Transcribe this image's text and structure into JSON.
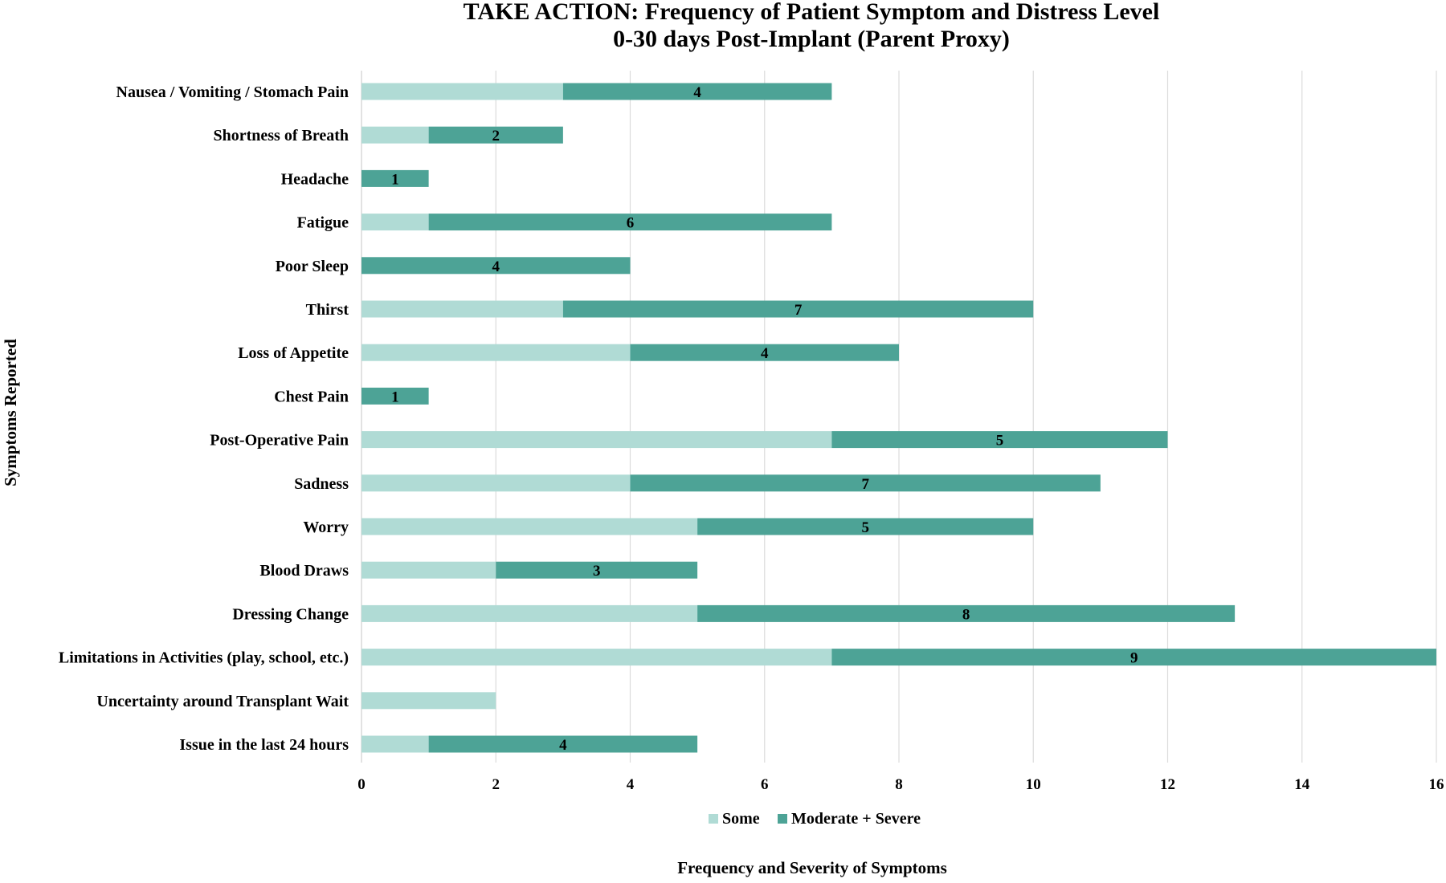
{
  "chart_data": {
    "type": "bar",
    "orientation": "horizontal",
    "stacked": true,
    "title_line1": "TAKE ACTION: Frequency of Patient Symptom and Distress Level",
    "title_line2": "0-30 days Post-Implant (Parent Proxy)",
    "xlabel": "Frequency and Severity of Symptoms",
    "ylabel": "Symptoms Reported",
    "xlim": [
      0,
      16
    ],
    "xticks": [
      0,
      2,
      4,
      6,
      8,
      10,
      12,
      14,
      16
    ],
    "grid": "vertical",
    "legend_position": "bottom",
    "categories": [
      "Nausea / Vomiting / Stomach Pain",
      "Shortness of Breath",
      "Headache",
      "Fatigue",
      "Poor Sleep",
      "Thirst",
      "Loss of Appetite",
      "Chest Pain",
      "Post-Operative Pain",
      "Sadness",
      "Worry",
      "Blood Draws",
      "Dressing Change",
      "Limitations in Activities (play, school, etc.)",
      "Uncertainty around Transplant Wait",
      "Issue in the last 24 hours"
    ],
    "series": [
      {
        "name": "Some",
        "color": "#b0dbd5",
        "values": [
          3,
          1,
          0,
          1,
          0,
          3,
          4,
          0,
          7,
          4,
          5,
          2,
          5,
          7,
          2,
          1
        ],
        "data_labels": [
          "",
          "",
          "",
          "",
          "",
          "",
          "",
          "",
          "",
          "",
          "",
          "",
          "",
          "",
          "",
          ""
        ]
      },
      {
        "name": "Moderate + Severe",
        "color": "#4da396",
        "values": [
          4,
          2,
          1,
          6,
          4,
          7,
          4,
          1,
          5,
          7,
          5,
          3,
          8,
          9,
          0,
          4
        ],
        "data_labels": [
          "4",
          "2",
          "1",
          "6",
          "4",
          "7",
          "4",
          "1",
          "5",
          "7",
          "5",
          "3",
          "8",
          "9",
          "",
          "4"
        ]
      }
    ]
  }
}
